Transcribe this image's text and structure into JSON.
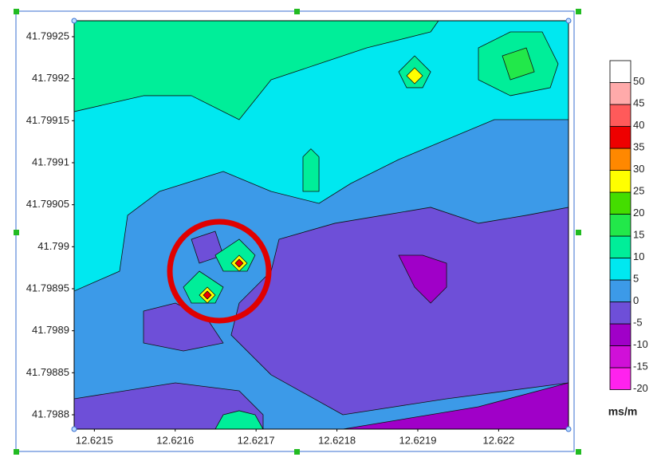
{
  "chart_data": {
    "type": "contour",
    "xlim": [
      12.621475,
      12.6220864
    ],
    "ylim": [
      41.7987829,
      41.799269
    ],
    "xticks": [
      12.6215,
      12.6216,
      12.6217,
      12.6218,
      12.6219,
      12.622
    ],
    "yticks": [
      41.7988,
      41.79885,
      41.7989,
      41.79895,
      41.799,
      41.79905,
      41.7991,
      41.79915,
      41.7992,
      41.79925
    ],
    "background_level": 0,
    "colorbar": {
      "levels": [
        -20,
        -15,
        -10,
        -5,
        0,
        5,
        10,
        15,
        20,
        25,
        30,
        35,
        40,
        45,
        50
      ],
      "colors": [
        "#ff22ee",
        "#d010d8",
        "#a000c8",
        "#6e4fd8",
        "#3c9ae8",
        "#00e8f0",
        "#00ee99",
        "#22e84a",
        "#44dd00",
        "#ffff00",
        "#ff8800",
        "#ee0000",
        "#ff5a5a",
        "#ffaaaa",
        "#ffffff"
      ],
      "unit": "ms/m"
    },
    "regions": [
      {
        "level": 5,
        "x": [
          12.621475,
          12.6220864,
          12.6220864,
          12.6219947,
          12.6219356,
          12.6218764,
          12.6218172,
          12.6217778,
          12.6217186,
          12.6216594,
          12.6215805,
          12.6215411,
          12.6215312,
          12.621475
        ],
        "y": [
          41.799269,
          41.799269,
          41.7991513,
          41.7991513,
          41.7991275,
          41.7991038,
          41.7990753,
          41.7990516,
          41.7990658,
          41.7990896,
          41.7990658,
          41.7990374,
          41.7989709,
          41.7989472
        ]
      },
      {
        "level": 10,
        "x": [
          12.621475,
          12.6219256,
          12.6219159,
          12.6218369,
          12.6217778,
          12.6217186,
          12.6216791,
          12.62162,
          12.6215608,
          12.621475
        ],
        "y": [
          41.799269,
          41.799269,
          41.7992557,
          41.7992367,
          41.7992177,
          41.7991987,
          41.7991513,
          41.7991798,
          41.7991798,
          41.7991608
        ]
      },
      {
        "level": 10,
        "x": [
          12.621975,
          12.6220145,
          12.6220539,
          12.6220736,
          12.6220638,
          12.6220145,
          12.621975
        ],
        "y": [
          41.7992367,
          41.7992557,
          41.7992557,
          41.7992177,
          41.7991893,
          41.7991798,
          41.7991987
        ]
      },
      {
        "level": 15,
        "x": [
          12.6220046,
          12.6220342,
          12.6220441,
          12.6220145
        ],
        "y": [
          41.7992272,
          41.7992367,
          41.7992082,
          41.7991987
        ]
      },
      {
        "level": -5,
        "x": [
          12.6220864,
          12.6220864,
          12.6219356,
          12.6218074,
          12.6217186,
          12.6216692,
          12.6216791,
          12.6217186,
          12.6217284,
          12.6217975,
          12.6218567,
          12.6219159,
          12.621975,
          12.6220342
        ],
        "y": [
          41.7990469,
          41.798838,
          41.798819,
          41.7988,
          41.7988475,
          41.7988949,
          41.7989329,
          41.7989709,
          41.7990089,
          41.7990279,
          41.7990374,
          41.7990469,
          41.7990279,
          41.7990374
        ]
      },
      {
        "level": -5,
        "x": [
          12.621475,
          12.6216002,
          12.6216791,
          12.6217087,
          12.6217087,
          12.621475
        ],
        "y": [
          41.798819,
          41.798838,
          41.7988285,
          41.7988,
          41.7987829,
          41.7987829
        ]
      },
      {
        "level": -10,
        "x": [
          12.6218074,
          12.621975,
          12.6220864,
          12.6220864
        ],
        "y": [
          41.7987829,
          41.7988095,
          41.798838,
          41.7987829
        ]
      },
      {
        "level": -10,
        "x": [
          12.6218764,
          12.621906,
          12.6219356,
          12.6219356,
          12.6219159,
          12.6218961
        ],
        "y": [
          41.7989899,
          41.7989899,
          41.7989804,
          41.7989519,
          41.7989329,
          41.7989519
        ]
      },
      {
        "level": -5,
        "x": [
          12.62162,
          12.6216495,
          12.6216594,
          12.6216298
        ],
        "y": [
          41.7990089,
          41.7990184,
          41.7989899,
          41.7989804
        ]
      },
      {
        "level": -5,
        "x": [
          12.6215608,
          12.6216002,
          12.6216397,
          12.6216594,
          12.6216101,
          12.6215608
        ],
        "y": [
          41.7989234,
          41.7989329,
          41.7989139,
          41.7988854,
          41.7988759,
          41.7988854
        ]
      },
      {
        "level": 10,
        "x": [
          12.6216495,
          12.6216791,
          12.6216988,
          12.621689,
          12.6216594
        ],
        "y": [
          41.7989899,
          41.7990089,
          41.7989899,
          41.7989709,
          41.7989709
        ]
      },
      {
        "level": 25,
        "x": [
          12.6216692,
          12.6216791,
          12.621689,
          12.6216791
        ],
        "y": [
          41.7989804,
          41.7989899,
          41.7989804,
          41.7989709
        ]
      },
      {
        "level": 35,
        "x": [
          12.6216791,
          12.621684,
          12.6216791,
          12.6216742
        ],
        "y": [
          41.7989852,
          41.7989804,
          41.7989757,
          41.7989804
        ]
      },
      {
        "level": 10,
        "x": [
          12.6216101,
          12.6216298,
          12.6216594,
          12.6216495,
          12.62162
        ],
        "y": [
          41.7989519,
          41.7989709,
          41.7989519,
          41.7989329,
          41.7989329
        ]
      },
      {
        "level": 25,
        "x": [
          12.6216298,
          12.6216397,
          12.6216495,
          12.6216397
        ],
        "y": [
          41.7989424,
          41.7989519,
          41.7989424,
          41.7989329
        ]
      },
      {
        "level": 35,
        "x": [
          12.6216347,
          12.6216397,
          12.6216446,
          12.6216397
        ],
        "y": [
          41.7989424,
          41.7989472,
          41.7989424,
          41.7989377
        ]
      },
      {
        "level": 10,
        "x": [
          12.6218764,
          12.6218961,
          12.6219159,
          12.621906,
          12.6218862
        ],
        "y": [
          41.7992082,
          41.7992272,
          41.7992082,
          41.7991893,
          41.7991893
        ]
      },
      {
        "level": 25,
        "x": [
          12.6218862,
          12.6218961,
          12.621906,
          12.6218961
        ],
        "y": [
          41.7992035,
          41.799213,
          41.7992035,
          41.799194
        ]
      },
      {
        "level": 10,
        "x": [
          12.621758,
          12.6217678,
          12.6217778,
          12.6217778,
          12.621758
        ],
        "y": [
          41.799107,
          41.7991165,
          41.799107,
          41.7990658,
          41.7990658
        ]
      },
      {
        "level": 10,
        "x": [
          12.6216495,
          12.6216594,
          12.6216791,
          12.6216988,
          12.6217087
        ],
        "y": [
          41.7987829,
          41.7988,
          41.7988048,
          41.7988,
          41.7987829
        ]
      }
    ]
  }
}
